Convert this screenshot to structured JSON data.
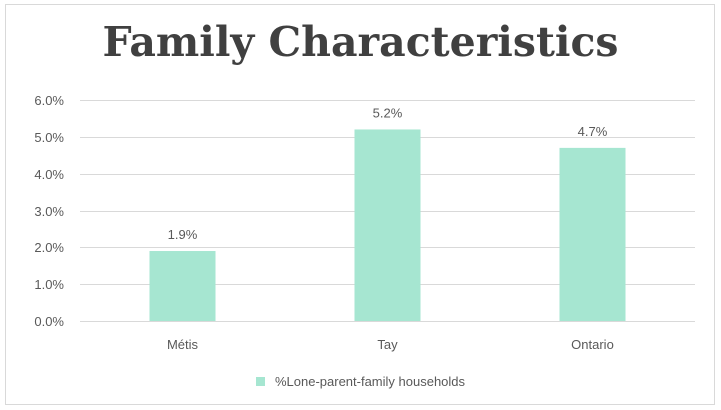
{
  "colors": {
    "bar": "#a6e6d1",
    "grid": "#d9d9d9",
    "text": "#595959",
    "title": "#404040"
  },
  "chart_data": {
    "type": "bar",
    "title": "Family Characteristics",
    "xlabel": "",
    "ylabel": "",
    "categories": [
      "Métis",
      "Tay",
      "Ontario"
    ],
    "series": [
      {
        "name": "%Lone-parent-family households",
        "values": [
          1.9,
          5.2,
          4.7
        ],
        "labels": [
          "1.9%",
          "5.2%",
          "4.7%"
        ]
      }
    ],
    "ylim": [
      0,
      6
    ],
    "yticks": [
      0,
      1,
      2,
      3,
      4,
      5,
      6
    ],
    "ytick_labels": [
      "0.0%",
      "1.0%",
      "2.0%",
      "3.0%",
      "4.0%",
      "5.0%",
      "6.0%"
    ],
    "grid": true,
    "legend_position": "bottom"
  }
}
